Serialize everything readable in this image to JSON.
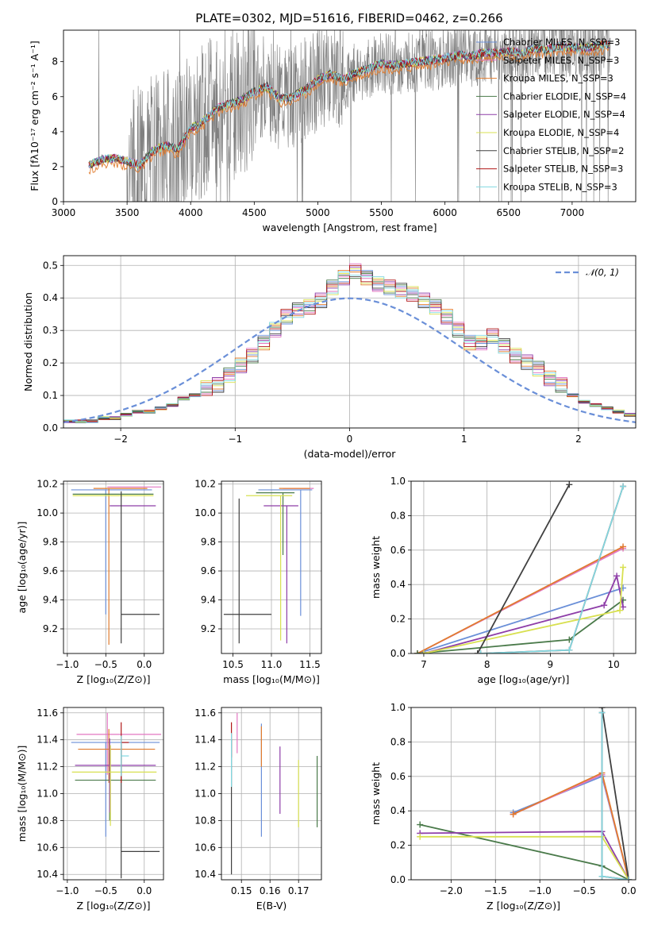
{
  "title": "PLATE=0302, MJD=51616, FIBERID=0462, z=0.266",
  "colors": {
    "grid": "#b0b0b0",
    "spectrum": "#808080",
    "series": [
      "#6a8fd8",
      "#e377c2",
      "#e07b2e",
      "#4a7a4a",
      "#8e3ea8",
      "#d8e050",
      "#404040",
      "#b01818",
      "#80d8e0"
    ]
  },
  "chart_data": [
    {
      "id": "spectrum",
      "type": "line",
      "xlabel": "wavelength [Angstrom, rest frame]",
      "ylabel": "Flux [fλ10⁻¹⁷ erg cm⁻² s⁻¹ A⁻¹]",
      "xlim": [
        3000,
        7500
      ],
      "ylim": [
        0,
        9.8
      ],
      "xticks": [
        3000,
        3500,
        4000,
        4500,
        5000,
        5500,
        6000,
        6500,
        7000
      ],
      "yticks": [
        0,
        2,
        4,
        6,
        8
      ],
      "legend": [
        "Chabrier MILES, N_SSP=3",
        "Salpeter MILES, N_SSP=3",
        "Kroupa MILES, N_SSP=3",
        "Chabrier ELODIE, N_SSP=4",
        "Salpeter ELODIE, N_SSP=4",
        "Kroupa ELODIE, N_SSP=4",
        "Chabrier STELIB, N_SSP=2",
        "Salpeter STELIB, N_SSP=3",
        "Kroupa STELIB, N_SSP=3"
      ],
      "legend_loc": "right",
      "model_x": [
        3200,
        3300,
        3400,
        3500,
        3600,
        3700,
        3800,
        3900,
        4000,
        4100,
        4200,
        4300,
        4400,
        4500,
        4600,
        4700,
        4800,
        4900,
        5000,
        5100,
        5200,
        5300,
        5400,
        5500,
        5600,
        5700,
        5800,
        5900,
        6000,
        6100,
        6200,
        6300,
        6400,
        6500,
        6600,
        6700,
        6800,
        6900,
        7000,
        7100,
        7200,
        7300
      ],
      "model_y": [
        2.1,
        2.4,
        2.5,
        2.3,
        2.1,
        2.9,
        3.2,
        3.0,
        4.2,
        4.6,
        5.3,
        5.6,
        5.8,
        6.3,
        6.6,
        5.9,
        6.0,
        6.4,
        7.0,
        7.3,
        7.0,
        7.4,
        7.6,
        7.9,
        7.8,
        7.9,
        8.0,
        8.1,
        8.2,
        8.4,
        8.3,
        8.5,
        8.5,
        8.6,
        8.5,
        8.8,
        8.7,
        8.9,
        8.8,
        8.8,
        8.9,
        9.0
      ]
    },
    {
      "id": "residuals",
      "type": "histogram",
      "xlabel": "(data-model)/error",
      "ylabel": "Normed distribution",
      "xlim": [
        -2.5,
        2.5
      ],
      "ylim": [
        0,
        0.53
      ],
      "xticks": [
        -2,
        -1,
        0,
        1,
        2
      ],
      "yticks": [
        0,
        0.1,
        0.2,
        0.3,
        0.4,
        0.5
      ],
      "legend": [
        "𝒩(0, 1)"
      ],
      "legend_loc": "upper right",
      "bin_width": 0.1,
      "bin_start": -2.5,
      "values": [
        0.02,
        0.02,
        0.02,
        0.03,
        0.03,
        0.04,
        0.05,
        0.05,
        0.06,
        0.07,
        0.09,
        0.1,
        0.12,
        0.13,
        0.16,
        0.19,
        0.22,
        0.26,
        0.3,
        0.34,
        0.36,
        0.37,
        0.39,
        0.43,
        0.46,
        0.48,
        0.46,
        0.44,
        0.43,
        0.42,
        0.41,
        0.39,
        0.37,
        0.34,
        0.3,
        0.26,
        0.26,
        0.28,
        0.25,
        0.22,
        0.2,
        0.18,
        0.15,
        0.13,
        0.1,
        0.08,
        0.07,
        0.06,
        0.05,
        0.04,
        0.03,
        0.03,
        0.03,
        0.02,
        0.02,
        0.02,
        0.02,
        0.02,
        0.02,
        0.02
      ]
    },
    {
      "id": "age-vs-Z",
      "type": "scatter",
      "xlabel": "Z [log₁₀(Z/Z⊙)]",
      "ylabel": "age [log₁₀(age/yr)]",
      "xlim": [
        -1.05,
        0.25
      ],
      "ylim": [
        9.03,
        10.22
      ],
      "xticks": [
        -1.0,
        -0.5,
        0.0
      ],
      "yticks": [
        9.2,
        9.4,
        9.6,
        9.8,
        10.0,
        10.2
      ],
      "points": [
        {
          "x": -0.5,
          "y": 10.16,
          "xerr": [
            0.45,
            0.6
          ],
          "yerr": [
            0.86,
            0.0
          ]
        },
        {
          "x": -0.48,
          "y": 10.18,
          "xerr": [
            0.0,
            0.7
          ],
          "yerr": [
            0.0,
            0.0
          ]
        },
        {
          "x": -0.46,
          "y": 10.17,
          "xerr": [
            0.2,
            0.5
          ],
          "yerr": [
            1.08,
            0.0
          ]
        },
        {
          "x": -0.48,
          "y": 10.13,
          "xerr": [
            0.45,
            0.6
          ],
          "yerr": [
            0.0,
            0.0
          ]
        },
        {
          "x": -0.45,
          "y": 10.05,
          "xerr": [
            0.0,
            0.6
          ],
          "yerr": [
            0.0,
            0.0
          ]
        },
        {
          "x": -0.48,
          "y": 10.12,
          "xerr": [
            0.45,
            0.6
          ],
          "yerr": [
            0.0,
            0.0
          ]
        },
        {
          "x": -0.3,
          "y": 9.3,
          "xerr": [
            0.0,
            0.5
          ],
          "yerr": [
            0.2,
            0.85
          ]
        },
        {
          "x": -0.48,
          "y": 10.18,
          "xerr": [
            0.0,
            0.0
          ],
          "yerr": [
            0.0,
            0.0
          ]
        },
        {
          "x": -0.46,
          "y": 10.14,
          "xerr": [
            0.0,
            0.0
          ],
          "yerr": [
            0.0,
            0.0
          ]
        }
      ]
    },
    {
      "id": "age-vs-mass",
      "type": "scatter",
      "xlabel": "mass [log₁₀(M/M⊙)]",
      "ylabel": "",
      "xlim": [
        10.35,
        11.65
      ],
      "ylim": [
        9.03,
        10.22
      ],
      "xticks": [
        10.5,
        11.0,
        11.5
      ],
      "yticks": [
        9.2,
        9.4,
        9.6,
        9.8,
        10.0,
        10.2
      ],
      "points": [
        {
          "x": 11.38,
          "y": 10.16,
          "xerr": [
            0.55,
            0.15
          ],
          "yerr": [
            0.87,
            0.0
          ]
        },
        {
          "x": 11.45,
          "y": 10.17,
          "xerr": [
            0.3,
            0.1
          ],
          "yerr": [
            0.0,
            0.0
          ]
        },
        {
          "x": 11.3,
          "y": 10.17,
          "xerr": [
            0.2,
            0.2
          ],
          "yerr": [
            0.0,
            0.0
          ]
        },
        {
          "x": 11.15,
          "y": 10.14,
          "xerr": [
            0.35,
            0.15
          ],
          "yerr": [
            0.43,
            0.0
          ]
        },
        {
          "x": 11.2,
          "y": 10.05,
          "xerr": [
            0.3,
            0.15
          ],
          "yerr": [
            0.95,
            0.0
          ]
        },
        {
          "x": 11.12,
          "y": 10.12,
          "xerr": [
            0.45,
            0.15
          ],
          "yerr": [
            1.0,
            0.0
          ]
        },
        {
          "x": 10.58,
          "y": 9.3,
          "xerr": [
            0.2,
            0.42
          ],
          "yerr": [
            0.2,
            0.8
          ]
        },
        {
          "x": 11.4,
          "y": 10.17,
          "xerr": [
            0.0,
            0.0
          ],
          "yerr": [
            0.0,
            0.0
          ]
        },
        {
          "x": 11.35,
          "y": 10.14,
          "xerr": [
            0.0,
            0.0
          ],
          "yerr": [
            0.0,
            0.0
          ]
        }
      ]
    },
    {
      "id": "mass-weight-vs-age",
      "type": "line",
      "xlabel": "age [log₁₀(age/yr)]",
      "ylabel": "mass weight",
      "xlim": [
        6.8,
        10.35
      ],
      "ylim": [
        0,
        1
      ],
      "xticks": [
        7,
        8,
        9,
        10
      ],
      "yticks": [
        0.0,
        0.2,
        0.4,
        0.6,
        0.8,
        1.0
      ],
      "series": [
        {
          "x": [
            6.9,
            10.15
          ],
          "y": [
            0.0,
            0.38
          ]
        },
        {
          "x": [
            6.9,
            10.15
          ],
          "y": [
            0.0,
            0.61
          ]
        },
        {
          "x": [
            6.9,
            10.15
          ],
          "y": [
            0.0,
            0.62
          ]
        },
        {
          "x": [
            6.9,
            9.3,
            10.15
          ],
          "y": [
            0.0,
            0.08,
            0.31
          ]
        },
        {
          "x": [
            7.0,
            9.85,
            10.05,
            10.15
          ],
          "y": [
            0.0,
            0.28,
            0.45,
            0.27
          ]
        },
        {
          "x": [
            7.0,
            10.1,
            10.15
          ],
          "y": [
            0.0,
            0.25,
            0.5
          ]
        },
        {
          "x": [
            7.85,
            9.3
          ],
          "y": [
            0.0,
            0.98
          ]
        },
        {
          "x": [
            7.9,
            9.3,
            10.15
          ],
          "y": [
            0.0,
            0.02,
            0.97
          ]
        },
        {
          "x": [
            7.9,
            9.3,
            10.15
          ],
          "y": [
            0.0,
            0.02,
            0.97
          ]
        }
      ]
    },
    {
      "id": "mass-vs-Z",
      "type": "scatter",
      "xlabel": "Z [log₁₀(Z/Z⊙)]",
      "ylabel": "mass [log₁₀(M/M⊙)]",
      "xlim": [
        -1.05,
        0.25
      ],
      "ylim": [
        10.36,
        11.64
      ],
      "xticks": [
        -1.0,
        -0.5,
        0.0
      ],
      "yticks": [
        10.4,
        10.6,
        10.8,
        11.0,
        11.2,
        11.4,
        11.6
      ],
      "points": [
        {
          "x": -0.5,
          "y": 11.38,
          "xerr": [
            0.45,
            0.7
          ],
          "yerr": [
            0.7,
            0.0
          ]
        },
        {
          "x": -0.48,
          "y": 11.44,
          "xerr": [
            0.4,
            0.7
          ],
          "yerr": [
            0.3,
            0.16
          ]
        },
        {
          "x": -0.46,
          "y": 11.33,
          "xerr": [
            0.4,
            0.6
          ],
          "yerr": [
            0.25,
            0.15
          ]
        },
        {
          "x": -0.45,
          "y": 11.1,
          "xerr": [
            0.45,
            0.6
          ],
          "yerr": [
            0.3,
            0.2
          ]
        },
        {
          "x": -0.45,
          "y": 11.21,
          "xerr": [
            0.45,
            0.6
          ],
          "yerr": [
            0.35,
            0.2
          ]
        },
        {
          "x": -0.44,
          "y": 11.16,
          "xerr": [
            0.5,
            0.6
          ],
          "yerr": [
            0.4,
            0.2
          ]
        },
        {
          "x": -0.3,
          "y": 10.57,
          "xerr": [
            0.0,
            0.5
          ],
          "yerr": [
            0.2,
            0.8
          ]
        },
        {
          "x": -0.3,
          "y": 11.38,
          "xerr": [
            0.0,
            0.1
          ],
          "yerr": [
            0.3,
            0.15
          ]
        },
        {
          "x": -0.3,
          "y": 11.28,
          "xerr": [
            0.0,
            0.1
          ],
          "yerr": [
            0.15,
            0.15
          ]
        }
      ]
    },
    {
      "id": "mass-vs-EBV",
      "type": "scatter",
      "xlabel": "E(B-V)",
      "ylabel": "",
      "xlim": [
        0.143,
        0.178
      ],
      "ylim": [
        10.36,
        11.64
      ],
      "xticks": [
        0.15,
        0.16,
        0.17
      ],
      "yticks": [
        10.4,
        10.6,
        10.8,
        11.0,
        11.2,
        11.4,
        11.6
      ],
      "points": [
        {
          "x": 0.157,
          "y": 11.1,
          "yerr": [
            0.42,
            0.42
          ]
        },
        {
          "x": 0.1485,
          "y": 11.45,
          "yerr": [
            0.15,
            0.15
          ]
        },
        {
          "x": 0.157,
          "y": 11.35,
          "yerr": [
            0.15,
            0.15
          ]
        },
        {
          "x": 0.1765,
          "y": 11.0,
          "yerr": [
            0.25,
            0.28
          ]
        },
        {
          "x": 0.1635,
          "y": 11.1,
          "yerr": [
            0.25,
            0.25
          ]
        },
        {
          "x": 0.17,
          "y": 11.0,
          "yerr": [
            0.25,
            0.25
          ]
        },
        {
          "x": 0.1465,
          "y": 10.9,
          "yerr": [
            0.5,
            0.5
          ]
        },
        {
          "x": 0.1465,
          "y": 11.4,
          "yerr": [
            0.13,
            0.13
          ]
        },
        {
          "x": 0.1465,
          "y": 11.25,
          "yerr": [
            0.2,
            0.2
          ]
        }
      ]
    },
    {
      "id": "mass-weight-vs-Z",
      "type": "line",
      "xlabel": "Z [log₁₀(Z/Z⊙)]",
      "ylabel": "mass weight",
      "xlim": [
        -2.45,
        0.08
      ],
      "ylim": [
        0,
        1
      ],
      "xticks": [
        -2.0,
        -1.5,
        -1.0,
        -0.5,
        0.0
      ],
      "yticks": [
        0.0,
        0.2,
        0.4,
        0.6,
        0.8,
        1.0
      ],
      "series": [
        {
          "x": [
            -1.3,
            -0.3,
            0.0
          ],
          "y": [
            0.39,
            0.6,
            0.0
          ]
        },
        {
          "x": [
            -1.3,
            -0.3,
            0.0
          ],
          "y": [
            0.38,
            0.61,
            0.0
          ]
        },
        {
          "x": [
            -1.3,
            -0.3,
            0.0
          ],
          "y": [
            0.38,
            0.62,
            0.0
          ]
        },
        {
          "x": [
            -2.35,
            -0.3,
            0.0
          ],
          "y": [
            0.32,
            0.08,
            0.0
          ]
        },
        {
          "x": [
            -2.35,
            -0.3,
            0.0
          ],
          "y": [
            0.27,
            0.28,
            0.0
          ]
        },
        {
          "x": [
            -2.35,
            -0.3,
            0.0
          ],
          "y": [
            0.25,
            0.25,
            0.0
          ]
        },
        {
          "x": [
            -0.3,
            0.0
          ],
          "y": [
            1.0,
            0.0
          ]
        },
        {
          "x": [
            -0.3,
            -0.3,
            0.0
          ],
          "y": [
            0.97,
            0.02,
            0.0
          ]
        },
        {
          "x": [
            -0.3,
            -0.3,
            0.0
          ],
          "y": [
            0.97,
            0.02,
            0.0
          ]
        }
      ]
    }
  ]
}
